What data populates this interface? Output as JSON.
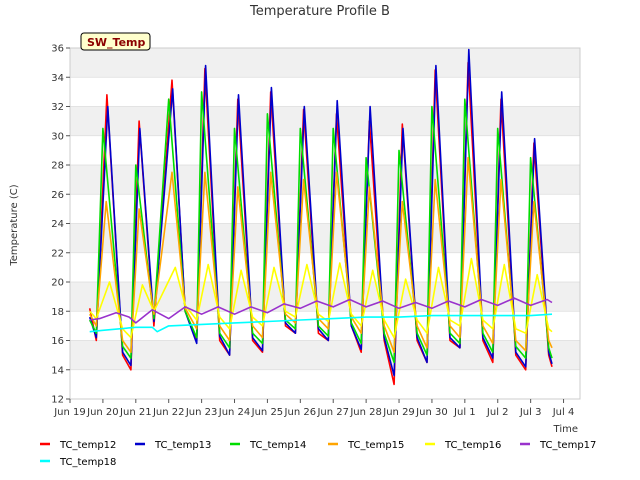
{
  "chart_data": {
    "type": "line",
    "title": "Temperature Profile B",
    "xlabel": "Time",
    "ylabel": "Temperature (C)",
    "badge": "SW_Temp",
    "ylim": [
      12,
      36
    ],
    "yticks": [
      12,
      14,
      16,
      18,
      20,
      22,
      24,
      26,
      28,
      30,
      32,
      34,
      36
    ],
    "xlim": [
      0,
      15.5
    ],
    "xticks": [
      {
        "pos": 0,
        "label": "Jun 19"
      },
      {
        "pos": 1,
        "label": "Jun 20"
      },
      {
        "pos": 2,
        "label": "Jun 21"
      },
      {
        "pos": 3,
        "label": "Jun 22"
      },
      {
        "pos": 4,
        "label": "Jun 23"
      },
      {
        "pos": 5,
        "label": "Jun 24"
      },
      {
        "pos": 6,
        "label": "Jun 25"
      },
      {
        "pos": 7,
        "label": "Jun 26"
      },
      {
        "pos": 8,
        "label": "Jun 27"
      },
      {
        "pos": 9,
        "label": "Jun 28"
      },
      {
        "pos": 10,
        "label": "Jun 29"
      },
      {
        "pos": 11,
        "label": "Jun 30"
      },
      {
        "pos": 12,
        "label": "Jul 1"
      },
      {
        "pos": 13,
        "label": "Jul 2"
      },
      {
        "pos": 14,
        "label": "Jul 3"
      },
      {
        "pos": 15,
        "label": "Jul 4"
      }
    ],
    "grid": "horizontal bands",
    "legend_position": "bottom",
    "series": [
      {
        "name": "TC_temp12",
        "color": "#ff0000",
        "points": [
          [
            0.6,
            18.2
          ],
          [
            0.8,
            16.0
          ],
          [
            1.12,
            32.8
          ],
          [
            1.6,
            15.0
          ],
          [
            1.85,
            14.0
          ],
          [
            2.1,
            31.0
          ],
          [
            2.55,
            17.0
          ],
          [
            3.1,
            33.8
          ],
          [
            3.5,
            18.0
          ],
          [
            3.85,
            16.0
          ],
          [
            4.1,
            34.6
          ],
          [
            4.55,
            16.0
          ],
          [
            4.85,
            15.0
          ],
          [
            5.1,
            32.5
          ],
          [
            5.55,
            16.0
          ],
          [
            5.85,
            15.2
          ],
          [
            6.1,
            33.0
          ],
          [
            6.55,
            17.0
          ],
          [
            6.85,
            16.5
          ],
          [
            7.1,
            31.8
          ],
          [
            7.55,
            16.5
          ],
          [
            7.85,
            16.0
          ],
          [
            8.1,
            31.5
          ],
          [
            8.55,
            17.0
          ],
          [
            8.85,
            15.2
          ],
          [
            9.1,
            31.0
          ],
          [
            9.55,
            16.0
          ],
          [
            9.85,
            13.0
          ],
          [
            10.1,
            30.8
          ],
          [
            10.55,
            16.0
          ],
          [
            10.85,
            14.5
          ],
          [
            11.1,
            34.5
          ],
          [
            11.55,
            16.0
          ],
          [
            11.85,
            15.5
          ],
          [
            12.1,
            35.0
          ],
          [
            12.55,
            16.0
          ],
          [
            12.85,
            14.5
          ],
          [
            13.1,
            32.5
          ],
          [
            13.55,
            15.0
          ],
          [
            13.85,
            14.0
          ],
          [
            14.1,
            29.5
          ],
          [
            14.55,
            15.0
          ],
          [
            14.65,
            14.2
          ]
        ]
      },
      {
        "name": "TC_temp13",
        "color": "#0000cd",
        "points": [
          [
            0.6,
            17.6
          ],
          [
            0.8,
            16.2
          ],
          [
            1.15,
            32.0
          ],
          [
            1.6,
            15.2
          ],
          [
            1.85,
            14.3
          ],
          [
            2.12,
            30.5
          ],
          [
            2.55,
            17.3
          ],
          [
            3.12,
            33.2
          ],
          [
            3.5,
            18.0
          ],
          [
            3.85,
            15.8
          ],
          [
            4.12,
            34.8
          ],
          [
            4.55,
            16.3
          ],
          [
            4.85,
            15.0
          ],
          [
            5.12,
            32.8
          ],
          [
            5.55,
            16.2
          ],
          [
            5.85,
            15.3
          ],
          [
            6.12,
            33.3
          ],
          [
            6.55,
            17.2
          ],
          [
            6.85,
            16.5
          ],
          [
            7.12,
            32.0
          ],
          [
            7.55,
            16.8
          ],
          [
            7.85,
            16.0
          ],
          [
            8.12,
            32.4
          ],
          [
            8.55,
            17.0
          ],
          [
            8.85,
            15.4
          ],
          [
            9.12,
            32.0
          ],
          [
            9.55,
            16.2
          ],
          [
            9.85,
            13.6
          ],
          [
            10.12,
            30.5
          ],
          [
            10.55,
            16.2
          ],
          [
            10.85,
            14.5
          ],
          [
            11.12,
            34.8
          ],
          [
            11.55,
            16.2
          ],
          [
            11.85,
            15.5
          ],
          [
            12.12,
            35.9
          ],
          [
            12.55,
            16.2
          ],
          [
            12.85,
            14.8
          ],
          [
            13.12,
            33.0
          ],
          [
            13.55,
            15.2
          ],
          [
            13.85,
            14.2
          ],
          [
            14.12,
            29.8
          ],
          [
            14.55,
            15.2
          ],
          [
            14.65,
            14.4
          ]
        ]
      },
      {
        "name": "TC_temp14",
        "color": "#00dd00",
        "points": [
          [
            0.6,
            17.4
          ],
          [
            0.8,
            16.5
          ],
          [
            1.0,
            30.5
          ],
          [
            1.6,
            15.6
          ],
          [
            1.85,
            14.8
          ],
          [
            2.0,
            28.0
          ],
          [
            2.55,
            17.5
          ],
          [
            3.0,
            32.5
          ],
          [
            3.5,
            18.0
          ],
          [
            3.85,
            16.2
          ],
          [
            4.0,
            33.0
          ],
          [
            4.55,
            16.5
          ],
          [
            4.85,
            15.5
          ],
          [
            5.0,
            30.5
          ],
          [
            5.55,
            16.5
          ],
          [
            5.85,
            15.8
          ],
          [
            6.0,
            31.5
          ],
          [
            6.55,
            17.4
          ],
          [
            6.85,
            16.8
          ],
          [
            7.0,
            30.5
          ],
          [
            7.55,
            17.0
          ],
          [
            7.85,
            16.3
          ],
          [
            8.0,
            30.5
          ],
          [
            8.55,
            17.2
          ],
          [
            8.85,
            15.8
          ],
          [
            9.0,
            28.5
          ],
          [
            9.55,
            16.5
          ],
          [
            9.85,
            14.5
          ],
          [
            10.0,
            29.0
          ],
          [
            10.55,
            16.5
          ],
          [
            10.85,
            15.0
          ],
          [
            11.0,
            32.0
          ],
          [
            11.55,
            16.5
          ],
          [
            11.85,
            15.8
          ],
          [
            12.0,
            32.5
          ],
          [
            12.55,
            16.5
          ],
          [
            12.85,
            15.2
          ],
          [
            13.0,
            30.5
          ],
          [
            13.55,
            15.6
          ],
          [
            13.85,
            14.8
          ],
          [
            14.0,
            28.5
          ],
          [
            14.55,
            15.5
          ],
          [
            14.65,
            14.8
          ]
        ]
      },
      {
        "name": "TC_temp15",
        "color": "#ffa500",
        "points": [
          [
            0.6,
            17.8
          ],
          [
            0.8,
            17.0
          ],
          [
            1.1,
            25.5
          ],
          [
            1.6,
            16.0
          ],
          [
            1.85,
            15.2
          ],
          [
            2.1,
            25.0
          ],
          [
            2.55,
            17.8
          ],
          [
            3.1,
            27.5
          ],
          [
            3.5,
            18.2
          ],
          [
            3.85,
            16.8
          ],
          [
            4.1,
            27.5
          ],
          [
            4.55,
            17.0
          ],
          [
            4.85,
            16.0
          ],
          [
            5.1,
            26.5
          ],
          [
            5.55,
            17.0
          ],
          [
            5.85,
            16.2
          ],
          [
            6.1,
            27.5
          ],
          [
            6.55,
            17.8
          ],
          [
            6.85,
            17.2
          ],
          [
            7.1,
            27.0
          ],
          [
            7.55,
            17.5
          ],
          [
            7.85,
            16.8
          ],
          [
            8.1,
            27.5
          ],
          [
            8.55,
            17.6
          ],
          [
            8.85,
            16.5
          ],
          [
            9.1,
            26.5
          ],
          [
            9.55,
            17.0
          ],
          [
            9.85,
            15.2
          ],
          [
            10.1,
            25.5
          ],
          [
            10.55,
            17.0
          ],
          [
            10.85,
            15.5
          ],
          [
            11.1,
            27.0
          ],
          [
            11.55,
            17.0
          ],
          [
            11.85,
            16.2
          ],
          [
            12.1,
            28.5
          ],
          [
            12.55,
            17.0
          ],
          [
            12.85,
            15.8
          ],
          [
            13.1,
            27.0
          ],
          [
            13.55,
            16.0
          ],
          [
            13.85,
            15.3
          ],
          [
            14.1,
            25.5
          ],
          [
            14.55,
            16.0
          ],
          [
            14.65,
            15.5
          ]
        ]
      },
      {
        "name": "TC_temp16",
        "color": "#ffff00",
        "points": [
          [
            0.6,
            18.0
          ],
          [
            0.8,
            17.5
          ],
          [
            1.2,
            20.0
          ],
          [
            1.6,
            16.8
          ],
          [
            1.85,
            16.2
          ],
          [
            2.2,
            19.8
          ],
          [
            2.55,
            18.0
          ],
          [
            3.2,
            21.0
          ],
          [
            3.5,
            18.4
          ],
          [
            3.85,
            17.4
          ],
          [
            4.2,
            21.2
          ],
          [
            4.55,
            17.6
          ],
          [
            4.85,
            16.8
          ],
          [
            5.2,
            20.8
          ],
          [
            5.55,
            17.6
          ],
          [
            5.85,
            17.0
          ],
          [
            6.2,
            21.0
          ],
          [
            6.55,
            18.0
          ],
          [
            6.85,
            17.6
          ],
          [
            7.2,
            21.2
          ],
          [
            7.55,
            17.8
          ],
          [
            7.85,
            17.3
          ],
          [
            8.2,
            21.3
          ],
          [
            8.55,
            17.8
          ],
          [
            8.85,
            17.0
          ],
          [
            9.2,
            20.8
          ],
          [
            9.55,
            17.4
          ],
          [
            9.85,
            16.2
          ],
          [
            10.2,
            20.2
          ],
          [
            10.55,
            17.4
          ],
          [
            10.85,
            16.5
          ],
          [
            11.2,
            21.0
          ],
          [
            11.55,
            17.4
          ],
          [
            11.85,
            17.0
          ],
          [
            12.2,
            21.6
          ],
          [
            12.55,
            17.4
          ],
          [
            12.85,
            16.8
          ],
          [
            13.2,
            21.2
          ],
          [
            13.55,
            16.8
          ],
          [
            13.85,
            16.5
          ],
          [
            14.2,
            20.5
          ],
          [
            14.55,
            16.8
          ],
          [
            14.65,
            16.6
          ]
        ]
      },
      {
        "name": "TC_temp17",
        "color": "#9932cc",
        "points": [
          [
            0.6,
            17.4
          ],
          [
            0.9,
            17.5
          ],
          [
            1.4,
            17.9
          ],
          [
            1.8,
            17.6
          ],
          [
            2.0,
            17.2
          ],
          [
            2.5,
            18.1
          ],
          [
            3.0,
            17.5
          ],
          [
            3.5,
            18.3
          ],
          [
            4.0,
            17.8
          ],
          [
            4.5,
            18.3
          ],
          [
            5.0,
            17.8
          ],
          [
            5.5,
            18.3
          ],
          [
            6.0,
            17.9
          ],
          [
            6.5,
            18.5
          ],
          [
            7.0,
            18.2
          ],
          [
            7.5,
            18.7
          ],
          [
            8.0,
            18.3
          ],
          [
            8.5,
            18.8
          ],
          [
            9.0,
            18.3
          ],
          [
            9.5,
            18.7
          ],
          [
            10.0,
            18.2
          ],
          [
            10.5,
            18.6
          ],
          [
            11.0,
            18.2
          ],
          [
            11.5,
            18.7
          ],
          [
            12.0,
            18.3
          ],
          [
            12.5,
            18.8
          ],
          [
            13.0,
            18.4
          ],
          [
            13.5,
            18.9
          ],
          [
            14.0,
            18.4
          ],
          [
            14.5,
            18.8
          ],
          [
            14.65,
            18.6
          ]
        ]
      },
      {
        "name": "TC_temp18",
        "color": "#00ffff",
        "points": [
          [
            0.6,
            16.6
          ],
          [
            1.0,
            16.7
          ],
          [
            2.0,
            16.9
          ],
          [
            2.5,
            16.9
          ],
          [
            2.65,
            16.6
          ],
          [
            3.0,
            17.0
          ],
          [
            4.0,
            17.1
          ],
          [
            5.0,
            17.2
          ],
          [
            6.0,
            17.3
          ],
          [
            7.0,
            17.4
          ],
          [
            8.0,
            17.5
          ],
          [
            9.0,
            17.6
          ],
          [
            10.0,
            17.6
          ],
          [
            11.0,
            17.7
          ],
          [
            12.0,
            17.7
          ],
          [
            13.0,
            17.7
          ],
          [
            14.0,
            17.7
          ],
          [
            14.65,
            17.8
          ]
        ]
      }
    ]
  }
}
